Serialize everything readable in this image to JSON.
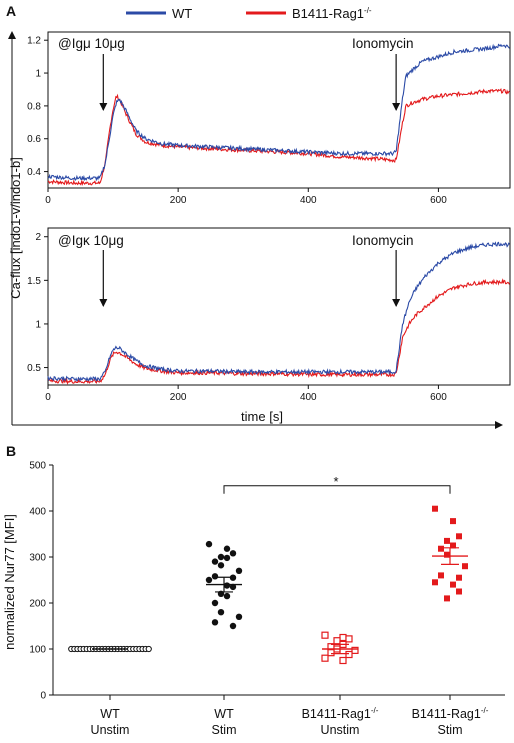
{
  "colors": {
    "wt": "#2b4aa6",
    "ko": "#e31a1c",
    "axis": "#111111",
    "black": "#111111"
  },
  "legend": {
    "wt": "WT",
    "ko": {
      "base": "B1411-Rag1",
      "sup": "-/-"
    }
  },
  "panels": {
    "a": "A",
    "b": "B"
  },
  "panel_a": {
    "ylabel": "Ca-flux [indo1-v/indo1-b]",
    "xlabel": "time [s]",
    "top": {
      "stim": "@Igμ 10μg",
      "iono": "Ionomycin"
    },
    "bottom": {
      "stim": "@Igκ 10μg",
      "iono": "Ionomycin"
    }
  },
  "panel_b": {
    "ylabel": "normalized Nur77 [MFI]",
    "sig": "*",
    "categories": [
      {
        "line1": "WT",
        "line2": "Unstim"
      },
      {
        "line1": "WT",
        "line2": "Stim"
      },
      {
        "line1": "B1411-Rag1",
        "sup": "-/-",
        "line2": "Unstim"
      },
      {
        "line1": "B1411-Rag1",
        "sup": "-/-",
        "line2": "Stim"
      }
    ]
  },
  "chart_data": [
    {
      "type": "line",
      "panel": "A-top",
      "x_ticks": [
        0,
        200,
        400,
        600
      ],
      "y_ticks": [
        0.4,
        0.6,
        0.8,
        1,
        1.2
      ],
      "xlim": [
        0,
        710
      ],
      "ylim": [
        0.3,
        1.25
      ],
      "annotations": [
        {
          "text": "@Igμ 10μg",
          "x": 85
        },
        {
          "text": "Ionomycin",
          "x": 535
        }
      ],
      "series": [
        {
          "name": "WT",
          "x": [
            0,
            40,
            80,
            88,
            95,
            100,
            105,
            110,
            120,
            135,
            150,
            175,
            200,
            250,
            300,
            350,
            400,
            450,
            500,
            530,
            535,
            545,
            550,
            560,
            575,
            600,
            625,
            650,
            675,
            700,
            710
          ],
          "y": [
            0.37,
            0.36,
            0.36,
            0.45,
            0.62,
            0.74,
            0.82,
            0.84,
            0.77,
            0.65,
            0.6,
            0.57,
            0.56,
            0.55,
            0.54,
            0.53,
            0.52,
            0.51,
            0.51,
            0.51,
            0.52,
            0.85,
            0.98,
            1.02,
            1.07,
            1.1,
            1.13,
            1.14,
            1.15,
            1.17,
            1.16
          ]
        },
        {
          "name": "B1411-Rag1-/-",
          "x": [
            0,
            40,
            80,
            88,
            95,
            100,
            105,
            110,
            120,
            135,
            150,
            175,
            200,
            250,
            300,
            350,
            400,
            450,
            500,
            530,
            535,
            545,
            550,
            560,
            575,
            600,
            625,
            650,
            675,
            700,
            710
          ],
          "y": [
            0.34,
            0.33,
            0.33,
            0.45,
            0.66,
            0.78,
            0.86,
            0.84,
            0.75,
            0.63,
            0.58,
            0.56,
            0.55,
            0.54,
            0.53,
            0.52,
            0.51,
            0.49,
            0.48,
            0.47,
            0.47,
            0.7,
            0.8,
            0.82,
            0.84,
            0.86,
            0.87,
            0.88,
            0.89,
            0.89,
            0.88
          ]
        }
      ]
    },
    {
      "type": "line",
      "panel": "A-bottom",
      "x_ticks": [
        0,
        200,
        400,
        600
      ],
      "y_ticks": [
        0.5,
        1,
        1.5,
        2
      ],
      "xlim": [
        0,
        710
      ],
      "ylim": [
        0.3,
        2.1
      ],
      "annotations": [
        {
          "text": "@Igκ 10μg",
          "x": 85
        },
        {
          "text": "Ionomycin",
          "x": 535
        }
      ],
      "series": [
        {
          "name": "WT",
          "x": [
            0,
            40,
            80,
            88,
            95,
            100,
            105,
            110,
            120,
            135,
            150,
            175,
            200,
            250,
            300,
            350,
            400,
            450,
            500,
            530,
            535,
            545,
            555,
            565,
            580,
            600,
            625,
            650,
            675,
            700,
            710
          ],
          "y": [
            0.38,
            0.37,
            0.37,
            0.45,
            0.62,
            0.7,
            0.73,
            0.72,
            0.66,
            0.58,
            0.52,
            0.48,
            0.46,
            0.46,
            0.45,
            0.45,
            0.45,
            0.45,
            0.45,
            0.45,
            0.46,
            1.0,
            1.25,
            1.4,
            1.55,
            1.7,
            1.82,
            1.88,
            1.91,
            1.92,
            1.9
          ]
        },
        {
          "name": "B1411-Rag1-/-",
          "x": [
            0,
            40,
            80,
            88,
            95,
            100,
            105,
            110,
            120,
            135,
            150,
            175,
            200,
            250,
            300,
            350,
            400,
            450,
            500,
            530,
            535,
            545,
            555,
            565,
            580,
            600,
            625,
            650,
            675,
            700,
            710
          ],
          "y": [
            0.35,
            0.34,
            0.34,
            0.42,
            0.58,
            0.65,
            0.68,
            0.67,
            0.62,
            0.54,
            0.49,
            0.46,
            0.44,
            0.44,
            0.43,
            0.43,
            0.42,
            0.42,
            0.42,
            0.42,
            0.43,
            0.85,
            1.0,
            1.1,
            1.2,
            1.32,
            1.42,
            1.46,
            1.48,
            1.48,
            1.47
          ]
        }
      ]
    },
    {
      "type": "scatter",
      "panel": "B",
      "y_ticks": [
        0,
        100,
        200,
        300,
        400,
        500
      ],
      "ylim": [
        0,
        500
      ],
      "categories": [
        "WT Unstim",
        "WT Stim",
        "B1411-Rag1-/- Unstim",
        "B1411-Rag1-/- Stim"
      ],
      "groups": [
        {
          "category": "WT Unstim",
          "marker": "open-circle",
          "color": "#111111",
          "mean": 100,
          "sem": 0,
          "values": [
            100,
            100,
            100,
            100,
            100,
            100,
            100,
            100,
            100,
            100,
            100,
            100,
            100,
            100,
            100,
            100,
            100,
            100,
            100,
            100,
            100,
            100,
            100,
            100,
            100,
            100
          ]
        },
        {
          "category": "WT Stim",
          "marker": "filled-circle",
          "color": "#111111",
          "mean": 240,
          "sem": 16,
          "values": [
            328,
            318,
            308,
            300,
            298,
            290,
            282,
            270,
            258,
            255,
            250,
            238,
            235,
            220,
            215,
            200,
            180,
            170,
            158,
            150
          ]
        },
        {
          "category": "B1411-Rag1-/- Unstim",
          "marker": "open-square",
          "color": "#e31a1c",
          "mean": 100,
          "sem": 10,
          "values": [
            130,
            125,
            122,
            118,
            110,
            105,
            100,
            97,
            92,
            88,
            80,
            75
          ]
        },
        {
          "category": "B1411-Rag1-/- Stim",
          "marker": "filled-square",
          "color": "#e31a1c",
          "mean": 302,
          "sem": 18,
          "values": [
            405,
            378,
            345,
            335,
            325,
            318,
            305,
            280,
            260,
            255,
            245,
            240,
            225,
            210
          ]
        }
      ],
      "significance": {
        "between": [
          "WT Stim",
          "B1411-Rag1-/- Stim"
        ],
        "label": "*"
      }
    }
  ]
}
